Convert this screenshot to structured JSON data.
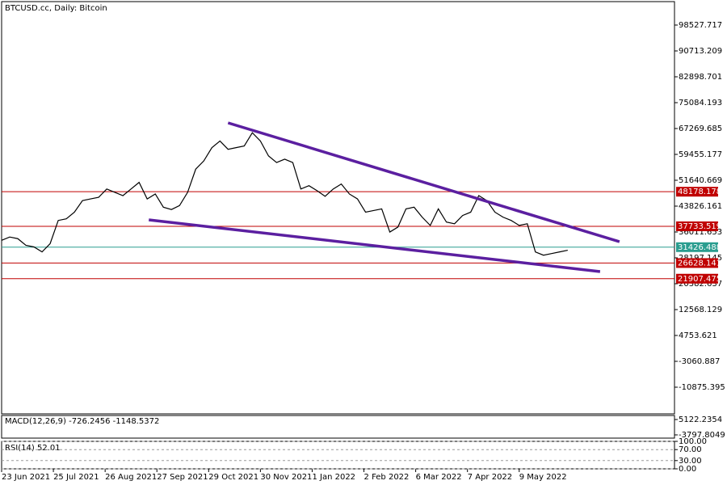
{
  "chart_data": {
    "type": "line",
    "title": "BTCUSD.cc, Daily:  Bitcoin",
    "series": [
      {
        "name": "BTCUSD.cc",
        "color": "#000000",
        "x": [
          0,
          5,
          10,
          15,
          20,
          25,
          30,
          35,
          40,
          45,
          50,
          55,
          60,
          65,
          70,
          75,
          80,
          85,
          90,
          95,
          100,
          105,
          110,
          115,
          120,
          125,
          130,
          135,
          140,
          145,
          150,
          155,
          160,
          165,
          170,
          175,
          180,
          185,
          190,
          195,
          200,
          205,
          210,
          215,
          220,
          225,
          230,
          235,
          240,
          245,
          250,
          255,
          260,
          265,
          270,
          275,
          280,
          285,
          290,
          295,
          300,
          305,
          310,
          315,
          320,
          325,
          330,
          335,
          340,
          345,
          350
        ],
        "values": [
          33500,
          34500,
          34000,
          32000,
          31500,
          30000,
          32500,
          39500,
          40000,
          42000,
          45500,
          46000,
          46500,
          49000,
          48000,
          47000,
          49000,
          51000,
          46000,
          47500,
          43500,
          42800,
          44000,
          48000,
          55000,
          57500,
          61500,
          63500,
          61000,
          61500,
          62000,
          66000,
          63500,
          59000,
          57000,
          58000,
          57000,
          49000,
          50000,
          48500,
          46800,
          49000,
          50500,
          47500,
          46000,
          42000,
          42500,
          43000,
          36000,
          37500,
          43000,
          43500,
          40500,
          38000,
          43000,
          39000,
          38500,
          41000,
          42000,
          47000,
          45500,
          42000,
          40500,
          39500,
          38000,
          38500,
          30000,
          29000,
          29500,
          30000,
          30500
        ]
      }
    ],
    "xlim": [
      0,
      416
    ],
    "xticks": [
      {
        "value": 0,
        "label": "23 Jun 2021"
      },
      {
        "value": 32,
        "label": "25 Jul 2021"
      },
      {
        "value": 64,
        "label": "26 Aug 2021"
      },
      {
        "value": 96,
        "label": "27 Sep 2021"
      },
      {
        "value": 128,
        "label": "29 Oct 2021"
      },
      {
        "value": 160,
        "label": "30 Nov 2021"
      },
      {
        "value": 192,
        "label": "1 Jan 2022"
      },
      {
        "value": 224,
        "label": "2 Feb 2022"
      },
      {
        "value": 256,
        "label": "6 Mar 2022"
      },
      {
        "value": 288,
        "label": "7 Apr 2022"
      },
      {
        "value": 320,
        "label": "9 May 2022"
      }
    ],
    "ylim": [
      -18934,
      105610
    ],
    "yticks": [
      98527.717,
      90713.209,
      82898.701,
      75084.193,
      67269.685,
      59455.177,
      51640.669,
      43826.161,
      36011.653,
      28197.145,
      20382.637,
      12568.129,
      4753.621,
      -3060.887,
      -10875.395
    ],
    "levels": [
      {
        "value": 48178.178,
        "color": "#c00000"
      },
      {
        "value": 37733.519,
        "color": "#c00000"
      },
      {
        "value": 31426.488,
        "color": "#2a9d8f"
      },
      {
        "value": 26628.141,
        "color": "#c00000"
      },
      {
        "value": 21907.475,
        "color": "#c00000"
      }
    ],
    "trendlines": [
      {
        "x": [
          140,
          382
        ],
        "y": [
          68980,
          33080
        ],
        "color": "#5b1fa0"
      },
      {
        "x": [
          91,
          370
        ],
        "y": [
          39675,
          24046
        ],
        "color": "#5b1fa0"
      }
    ],
    "macd": {
      "label": "MACD(12,26,9) -726.2456 -1148.5372",
      "ylim": [
        -5676,
        7470
      ],
      "yticks": [
        {
          "value": 5122.2354,
          "label": "5122.2354"
        },
        {
          "value": -3797.8049,
          "label": "-3797.8049"
        }
      ]
    },
    "rsi": {
      "label": "RSI(14) 52.01",
      "ylim": [
        0,
        100
      ],
      "yticks": [
        {
          "value": 100,
          "label": "100.00"
        },
        {
          "value": 70,
          "label": "70.00"
        },
        {
          "value": 30,
          "label": "30.00"
        },
        {
          "value": 0,
          "label": "0.00"
        }
      ]
    }
  }
}
